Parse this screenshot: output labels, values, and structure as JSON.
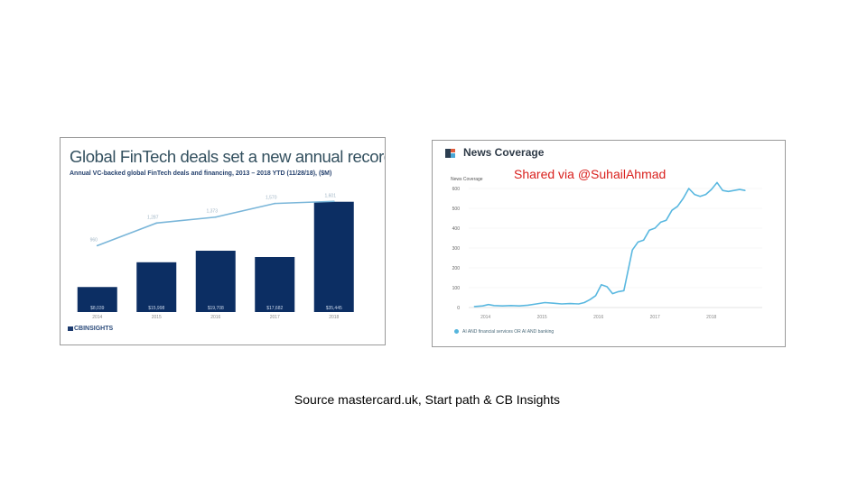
{
  "left_panel": {
    "title": "Global FinTech deals set a new annual record year",
    "subtitle": "Annual VC-backed global FinTech deals and financing, 2013 – 2018 YTD (11/28/18), ($M)",
    "logo_text": "CBINSIGHTS"
  },
  "right_panel": {
    "title": "News Coverage",
    "icon": "news-coverage-logo-icon",
    "legend_text": "AI AND financial services OR AI AND banking"
  },
  "overlay_text": "Shared via @SuhailAhmad",
  "source_text": "Source mastercard.uk, Start path & CB Insights",
  "colors": {
    "bar": "#0c2e63",
    "deal_line": "#7ab6d9",
    "news_line": "#5ab8e0",
    "overlay": "#d9211e"
  },
  "chart_data": [
    {
      "type": "bar",
      "title": "Global FinTech deals set a new annual record year",
      "subtitle": "Annual VC-backed global FinTech deals and financing, 2013 – 2018 YTD (11/28/18), ($M)",
      "categories": [
        "2014",
        "2015",
        "2016",
        "2017",
        "2018"
      ],
      "series": [
        {
          "values": [
            8039,
            15998,
            19708,
            17682,
            35445
          ],
          "labels": [
            "$8,039",
            "$15,998",
            "$19,708",
            "$17,682",
            "$35,445"
          ]
        }
      ],
      "line": {
        "values": [
          960,
          1287,
          1373,
          1570,
          1601
        ],
        "labels": [
          "960",
          "1,287",
          "1,373",
          "1,570",
          "1,601"
        ]
      },
      "ylim": [
        0,
        40000
      ],
      "line_ylim": [
        0,
        1800
      ],
      "grid": false
    },
    {
      "type": "line",
      "title": "News Coverage",
      "ylabel": "News Coverage",
      "y_ticks": [
        "0",
        "100",
        "200",
        "300",
        "400",
        "500",
        "600"
      ],
      "ylim": [
        0,
        650
      ],
      "x_ticks": [
        "2014",
        "2015",
        "2016",
        "2017",
        "2018"
      ],
      "xlim": [
        2013.75,
        2018.9
      ],
      "series": [
        {
          "name": "AI AND financial services OR AI AND banking",
          "x": [
            2013.8,
            2013.95,
            2014.05,
            2014.15,
            2014.3,
            2014.45,
            2014.6,
            2014.75,
            2014.9,
            2015.05,
            2015.2,
            2015.35,
            2015.5,
            2015.65,
            2015.75,
            2015.85,
            2015.95,
            2016.05,
            2016.15,
            2016.25,
            2016.35,
            2016.45,
            2016.6,
            2016.7,
            2016.8,
            2016.9,
            2017.0,
            2017.1,
            2017.2,
            2017.3,
            2017.4,
            2017.5,
            2017.6,
            2017.7,
            2017.8,
            2017.9,
            2018.0,
            2018.1,
            2018.2,
            2018.3,
            2018.4,
            2018.5,
            2018.6
          ],
          "values": [
            5,
            8,
            15,
            10,
            8,
            10,
            8,
            12,
            18,
            25,
            22,
            18,
            20,
            18,
            25,
            40,
            60,
            115,
            105,
            70,
            80,
            85,
            290,
            330,
            340,
            390,
            400,
            430,
            440,
            490,
            510,
            550,
            600,
            570,
            560,
            570,
            595,
            630,
            590,
            585,
            590,
            595,
            590
          ]
        }
      ],
      "legend": "bottom-left"
    }
  ]
}
